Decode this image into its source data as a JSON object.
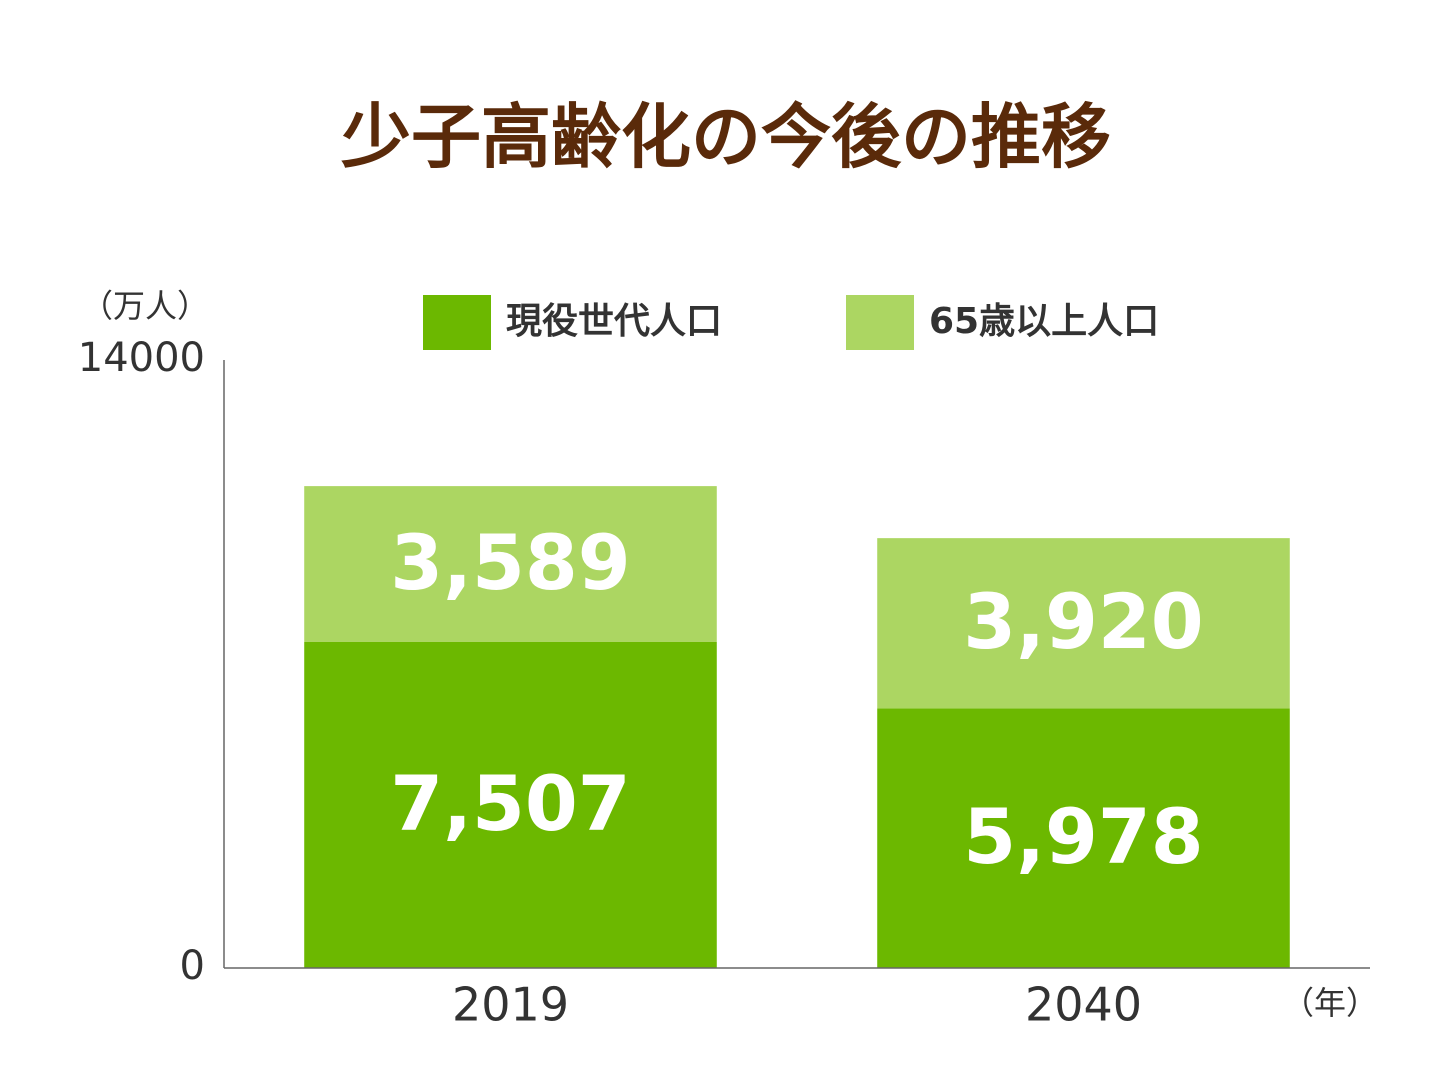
{
  "chart_data": {
    "type": "stacked_bar",
    "title": "少子高齢化の今後の推移",
    "y_label": "（万人）",
    "x_label": "（年）",
    "categories": [
      "2019",
      "2040"
    ],
    "series": [
      {
        "name": "現役世代人口",
        "color": "#6cb800",
        "values": [
          7507,
          5978
        ],
        "value_labels": [
          "7,507",
          "5,978"
        ]
      },
      {
        "name": "65歳以上人口",
        "color": "#acd662",
        "values": [
          3589,
          3920
        ],
        "value_labels": [
          "3,589",
          "3,920"
        ]
      }
    ],
    "ylim": [
      0,
      14000
    ],
    "yticks": [
      0,
      14000
    ],
    "grid": false
  }
}
